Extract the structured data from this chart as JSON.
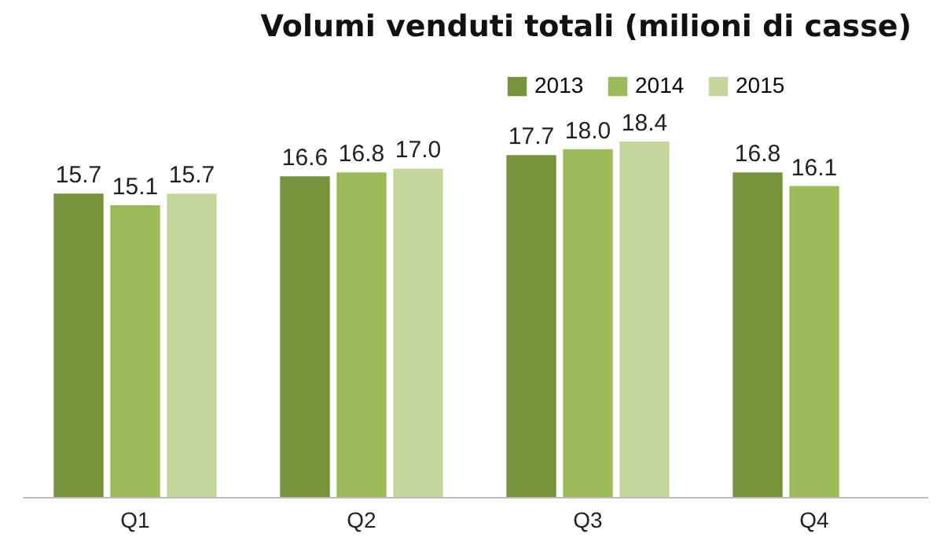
{
  "chart_data": {
    "type": "bar",
    "title": "Volumi venduti totali (milioni di casse)",
    "categories": [
      "Q1",
      "Q2",
      "Q3",
      "Q4"
    ],
    "series": [
      {
        "name": "2013",
        "color": "#77933c",
        "values": [
          15.7,
          16.6,
          17.7,
          16.8
        ],
        "value_labels": [
          "15.7",
          "16.6",
          "17.7",
          "16.8"
        ]
      },
      {
        "name": "2014",
        "color": "#9bbb59",
        "values": [
          15.1,
          16.8,
          18.0,
          16.1
        ],
        "value_labels": [
          "15.1",
          "16.8",
          "18.0",
          "16.1"
        ]
      },
      {
        "name": "2015",
        "color": "#c3d69b",
        "values": [
          15.7,
          17.0,
          18.4,
          null
        ],
        "value_labels": [
          "15.7",
          "17.0",
          "18.4",
          null
        ]
      }
    ],
    "legend": "top right"
  }
}
